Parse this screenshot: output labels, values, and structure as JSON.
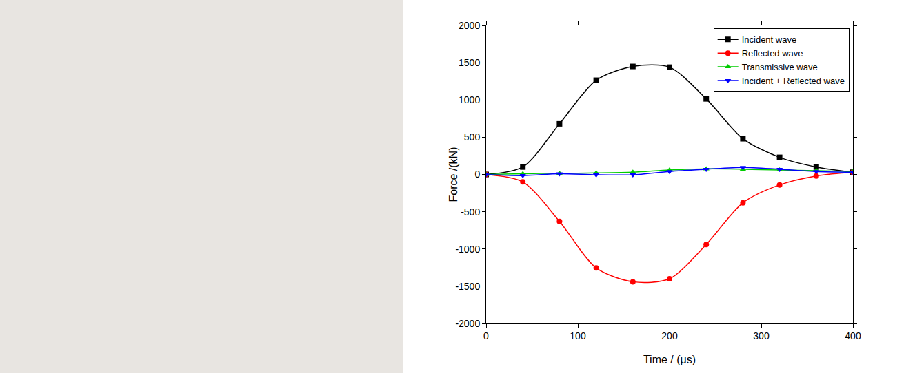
{
  "chart_data": {
    "type": "line",
    "x_label": "Time / (μs)",
    "y_label": "Force /(kN)",
    "x": [
      0,
      40,
      80,
      120,
      160,
      200,
      240,
      280,
      320,
      360,
      400
    ],
    "series": [
      {
        "name": "Incident wave",
        "color": "#000000",
        "marker": "square",
        "values": [
          0,
          100,
          680,
          1265,
          1450,
          1440,
          1015,
          480,
          230,
          100,
          30
        ]
      },
      {
        "name": "Reflected wave",
        "color": "#ff0000",
        "marker": "circle",
        "values": [
          0,
          -100,
          -630,
          -1255,
          -1440,
          -1400,
          -940,
          -380,
          -140,
          -20,
          30
        ]
      },
      {
        "name": "Transmissive wave",
        "color": "#00cc00",
        "marker": "triangle-up",
        "values": [
          0,
          10,
          15,
          20,
          30,
          60,
          75,
          70,
          60,
          50,
          40
        ]
      },
      {
        "name": "Incident + Reflected wave",
        "color": "#0000ff",
        "marker": "triangle-down",
        "values": [
          0,
          -15,
          10,
          -5,
          -5,
          40,
          70,
          95,
          70,
          40,
          30
        ]
      }
    ],
    "xlim": [
      0,
      400
    ],
    "xticks": [
      0,
      100,
      200,
      300,
      400
    ],
    "ylim": [
      -2000,
      2000
    ],
    "yticks": [
      -2000,
      -1500,
      -1000,
      -500,
      0,
      500,
      1000,
      1500,
      2000
    ],
    "grid": false,
    "legend": "upper right"
  }
}
